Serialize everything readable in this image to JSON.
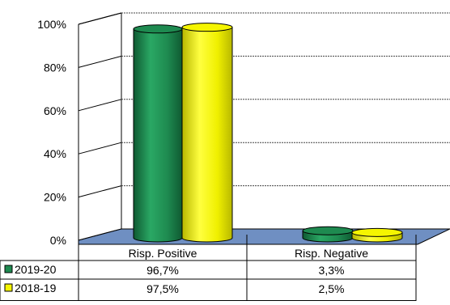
{
  "chart_data": {
    "type": "bar",
    "style": "3d-cylinder",
    "categories": [
      "Risp. Positive",
      "Risp. Negative"
    ],
    "series": [
      {
        "name": "2019-20",
        "values": [
          96.7,
          3.3
        ],
        "labels": [
          "96,7%",
          "3,3%"
        ],
        "color": "#1e8a50"
      },
      {
        "name": "2018-19",
        "values": [
          97.5,
          2.5
        ],
        "labels": [
          "97,5%",
          "2,5%"
        ],
        "color": "#f5f500"
      }
    ],
    "ylim": [
      0,
      100
    ],
    "yticks": [
      "0%",
      "20%",
      "40%",
      "60%",
      "80%",
      "100%"
    ],
    "grid": true,
    "legend": "data-table-left",
    "floor_color": "#6f8fc2"
  }
}
